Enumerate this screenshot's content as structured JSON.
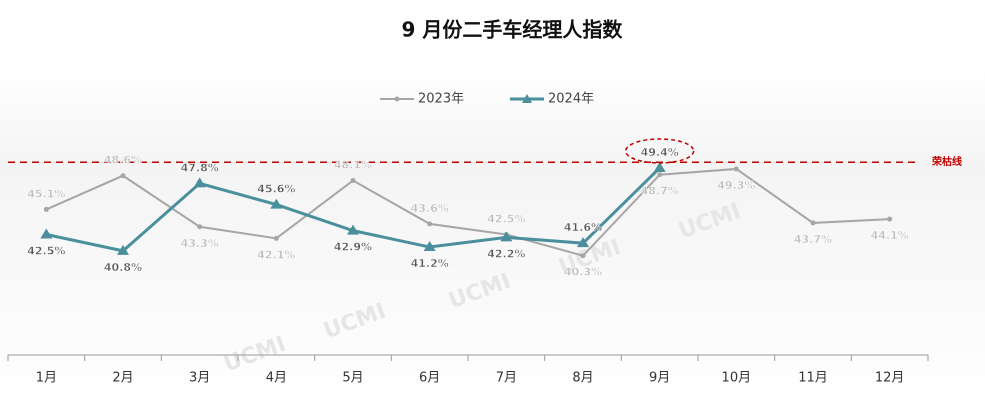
{
  "chart_data": {
    "type": "line",
    "title": "9 月份二手车经理人指数",
    "watermark": "UCMI",
    "categories": [
      "1月",
      "2月",
      "3月",
      "4月",
      "5月",
      "6月",
      "7月",
      "8月",
      "9月",
      "10月",
      "11月",
      "12月"
    ],
    "series": [
      {
        "name": "2023年",
        "color": "#a6a6a6",
        "marker": "circle",
        "values": [
          45.1,
          48.6,
          43.3,
          42.1,
          48.1,
          43.6,
          42.5,
          40.3,
          48.7,
          49.3,
          43.7,
          44.1
        ],
        "value_labels": [
          "45.1%",
          "48.6%",
          "43.3%",
          "42.1%",
          "48.1%",
          "43.6%",
          "42.5%",
          "40.3%",
          "48.7%",
          "49.3%",
          "43.7%",
          "44.1%"
        ]
      },
      {
        "name": "2024年",
        "color": "#4a8f9c",
        "marker": "triangle",
        "values": [
          42.5,
          40.8,
          47.8,
          45.6,
          42.9,
          41.2,
          42.2,
          41.6,
          49.4,
          null,
          null,
          null
        ],
        "value_labels": [
          "42.5%",
          "40.8%",
          "47.8%",
          "45.6%",
          "42.9%",
          "41.2%",
          "42.2%",
          "41.6%",
          "49.4%",
          null,
          null,
          null
        ]
      }
    ],
    "reference_line": {
      "value": 50,
      "label": "荣枯线",
      "color": "#c00000"
    },
    "ylim": [
      30,
      55
    ],
    "legend": "top"
  }
}
